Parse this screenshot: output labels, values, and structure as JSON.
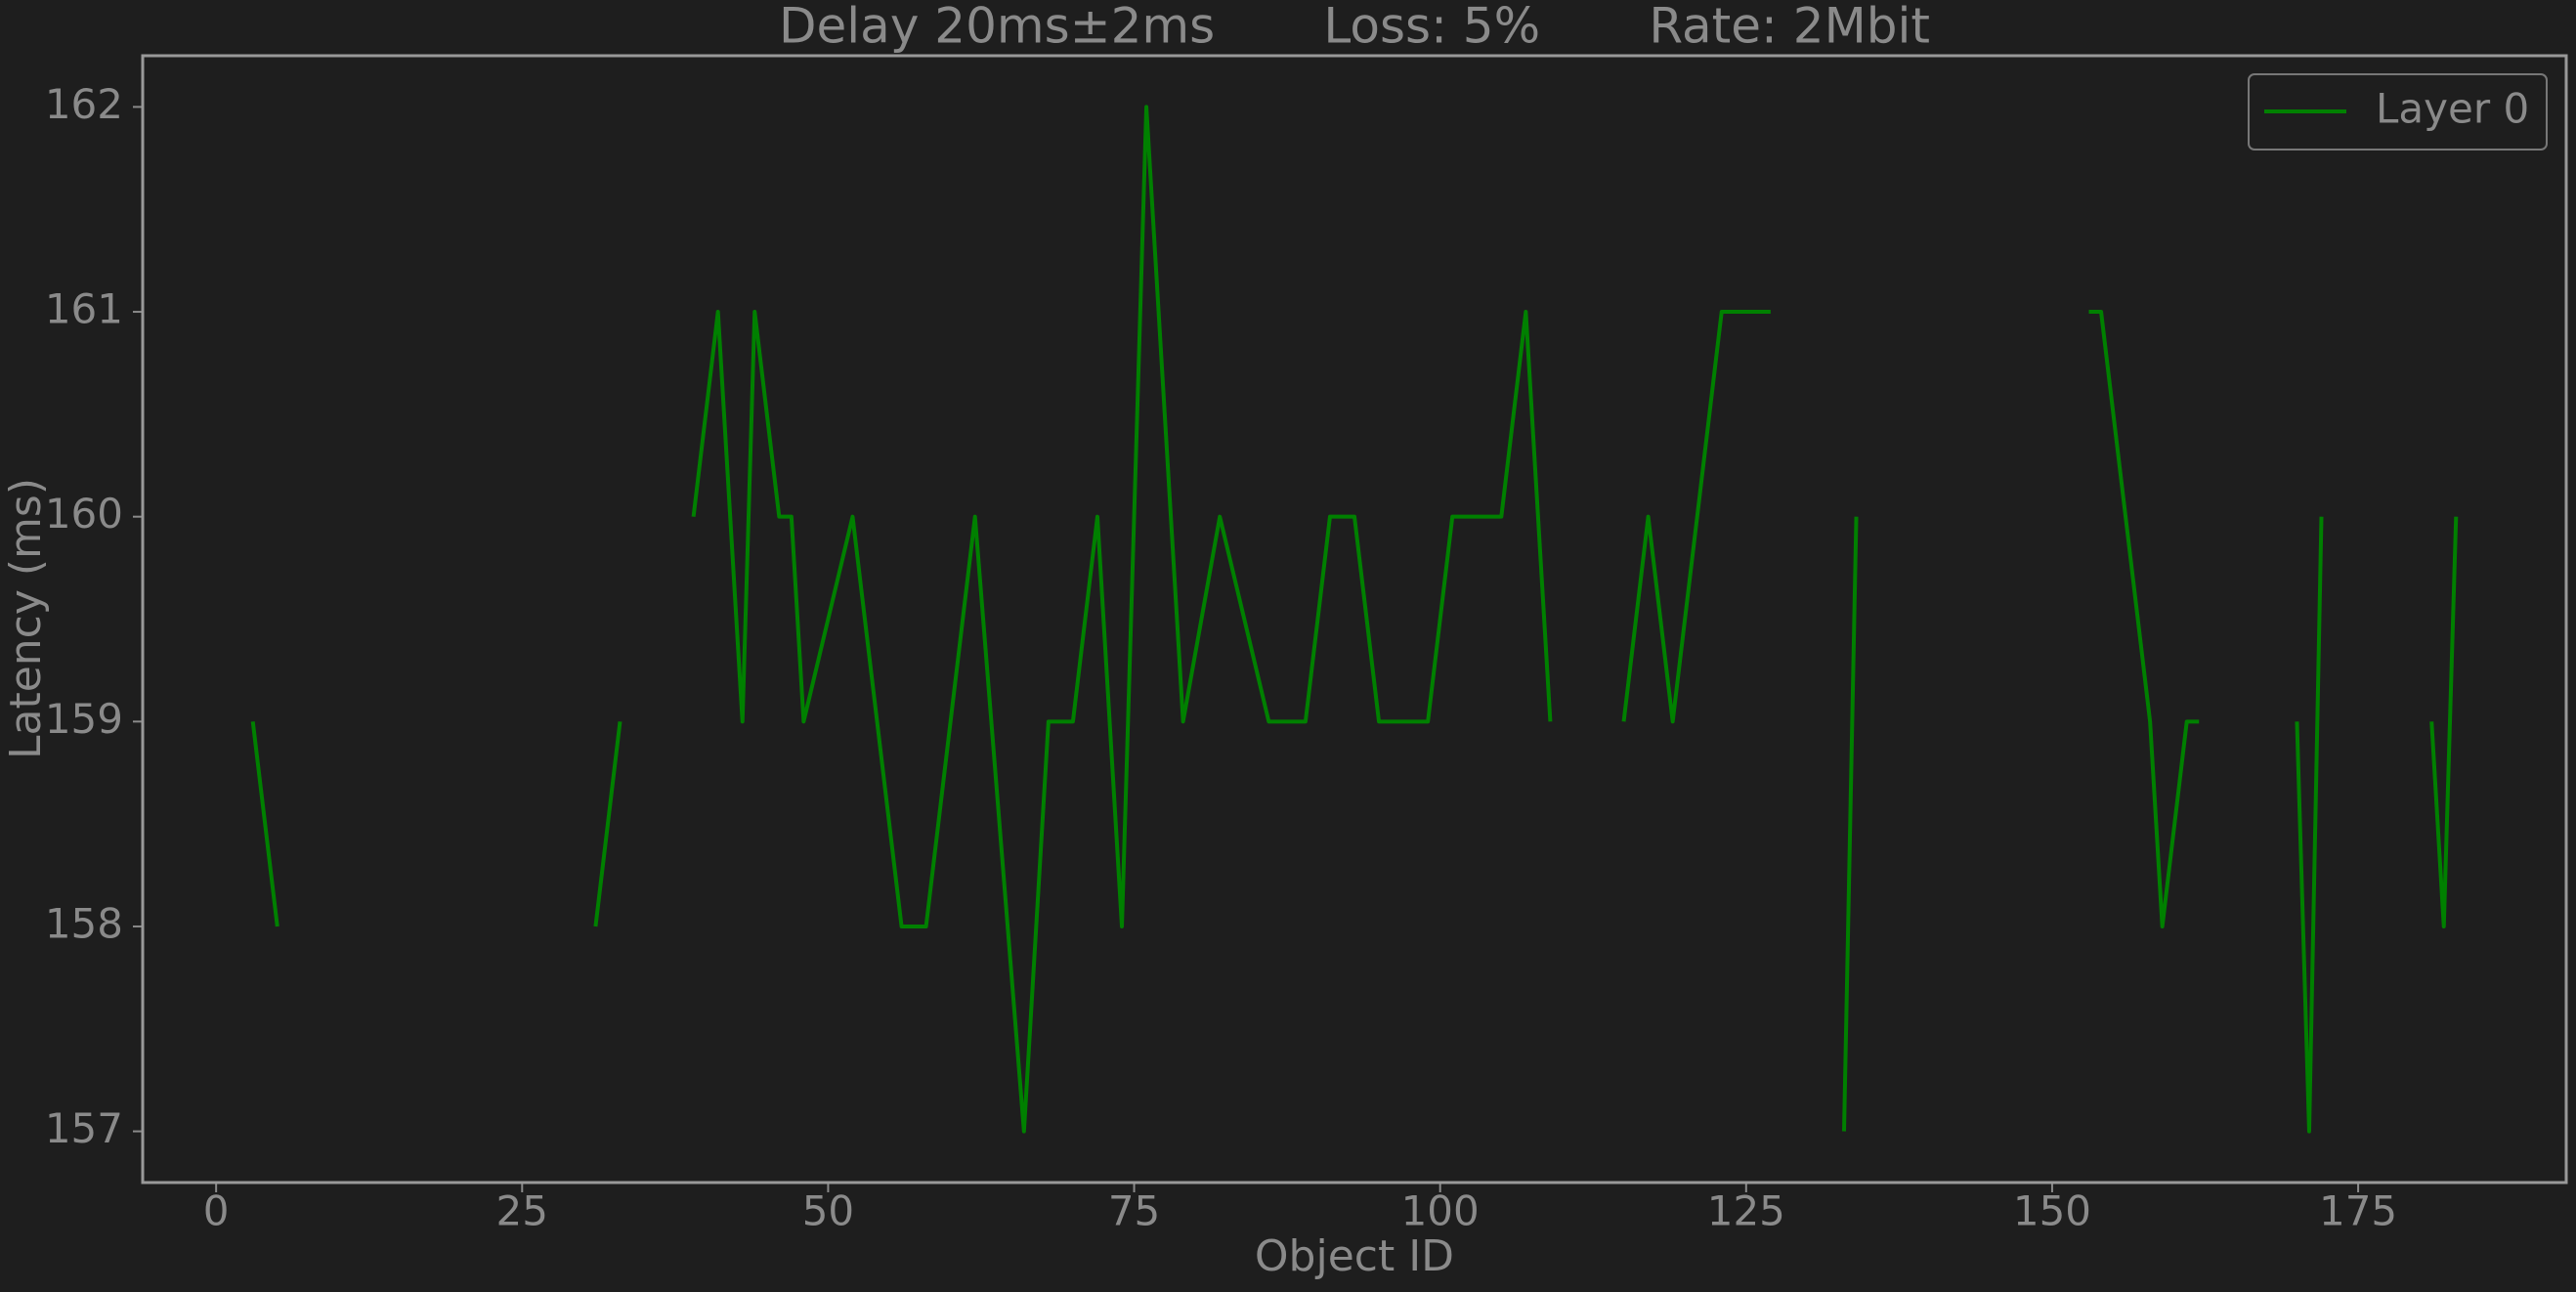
{
  "chart_data": {
    "type": "line",
    "title": "Delay 20ms±2ms       Loss: 5%       Rate: 2Mbit",
    "xlabel": "Object ID",
    "ylabel": "Latency (ms)",
    "x": [
      3,
      5,
      6,
      31,
      33,
      34,
      39,
      41,
      43,
      44,
      46,
      47,
      48,
      52,
      56,
      58,
      62,
      66,
      68,
      70,
      72,
      74,
      76,
      79,
      82,
      86,
      89,
      91,
      93,
      95,
      99,
      101,
      105,
      107,
      109,
      110,
      115,
      117,
      119,
      123,
      127,
      128,
      133,
      134,
      135,
      153,
      154,
      158,
      159,
      161,
      162,
      163,
      170,
      171,
      172,
      173,
      181,
      182,
      183
    ],
    "series": [
      {
        "name": "Layer 0",
        "color": "#008000",
        "values": [
          159,
          158,
          null,
          158,
          159,
          null,
          160,
          161,
          159,
          161,
          160,
          160,
          159,
          160,
          158,
          158,
          160,
          157,
          159,
          159,
          160,
          158,
          162,
          159,
          160,
          159,
          159,
          160,
          160,
          159,
          159,
          160,
          160,
          161,
          159,
          null,
          159,
          160,
          159,
          161,
          161,
          null,
          157,
          160,
          null,
          161,
          161,
          159,
          158,
          159,
          159,
          null,
          159,
          157,
          160,
          null,
          159,
          158,
          160
        ]
      }
    ],
    "xlim": [
      -6,
      192
    ],
    "ylim": [
      156.75,
      162.25
    ],
    "xticks": [
      0,
      25,
      50,
      75,
      100,
      125,
      150,
      175
    ],
    "yticks": [
      157,
      158,
      159,
      160,
      161,
      162
    ],
    "legend": "upper right"
  }
}
